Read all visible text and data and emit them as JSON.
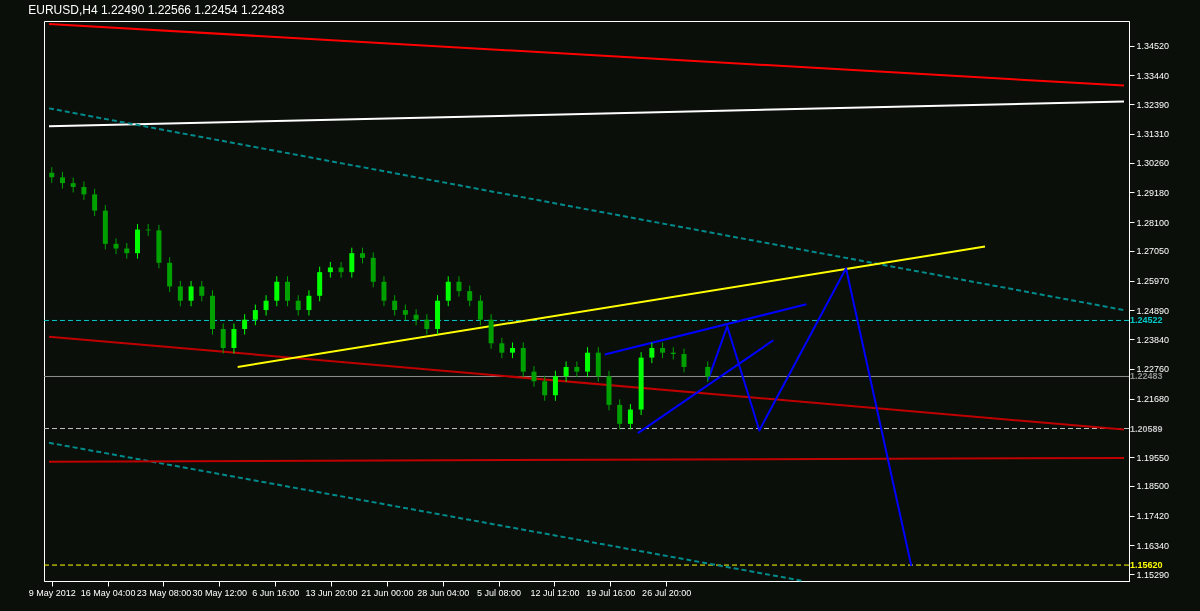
{
  "chart_data": {
    "type": "candlestick",
    "title": "EURUSD,H4 1.22490 1.22566 1.22454 1.22483",
    "x": [
      "2012-05-09T00:00",
      "2012-05-10T09:00",
      "2012-05-11T18:00",
      "2012-05-13T03:00",
      "2012-05-14T12:00",
      "2012-05-15T21:00",
      "2012-05-17T06:00",
      "2012-05-18T15:00",
      "2012-05-20T00:00",
      "2012-05-21T09:00",
      "2012-05-22T18:00",
      "2012-05-24T03:00",
      "2012-05-25T12:00",
      "2012-05-26T21:00",
      "2012-05-28T06:00",
      "2012-05-29T15:00",
      "2012-05-31T00:00",
      "2012-06-01T09:00",
      "2012-06-02T18:00",
      "2012-06-04T03:00",
      "2012-06-05T12:00",
      "2012-06-06T21:00",
      "2012-06-08T06:00",
      "2012-06-09T15:00",
      "2012-06-11T00:00",
      "2012-06-12T09:00",
      "2012-06-13T18:00",
      "2012-06-15T03:00",
      "2012-06-16T12:00",
      "2012-06-17T21:00",
      "2012-06-19T06:00",
      "2012-06-20T15:00",
      "2012-06-22T00:00",
      "2012-06-23T09:00",
      "2012-06-24T18:00",
      "2012-06-26T03:00",
      "2012-06-27T12:00",
      "2012-06-28T21:00",
      "2012-06-30T06:00",
      "2012-07-01T15:00",
      "2012-07-03T00:00",
      "2012-07-04T09:00",
      "2012-07-05T18:00",
      "2012-07-07T03:00",
      "2012-07-08T12:00",
      "2012-07-09T21:00",
      "2012-07-11T06:00",
      "2012-07-12T15:00",
      "2012-07-14T00:00",
      "2012-07-15T09:00",
      "2012-07-16T18:00",
      "2012-07-18T03:00",
      "2012-07-19T12:00",
      "2012-07-20T21:00",
      "2012-07-22T06:00",
      "2012-07-23T15:00",
      "2012-07-25T00:00",
      "2012-07-26T09:00",
      "2012-07-27T18:00",
      "2012-07-29T03:00",
      "2012-08-01T04:00"
    ],
    "ohlc": [
      [
        1.299,
        1.301,
        1.2953,
        1.2973
      ],
      [
        1.2973,
        1.2993,
        1.2932,
        1.2952
      ],
      [
        1.2952,
        1.2972,
        1.2918,
        1.2938
      ],
      [
        1.2938,
        1.2958,
        1.2891,
        1.2911
      ],
      [
        1.2911,
        1.2931,
        1.2832,
        1.2852
      ],
      [
        1.2852,
        1.2872,
        1.2711,
        1.2731
      ],
      [
        1.2731,
        1.2751,
        1.2694,
        1.2714
      ],
      [
        1.2714,
        1.2734,
        1.2677,
        1.2697
      ],
      [
        1.2697,
        1.2803,
        1.2677,
        1.2783
      ],
      [
        1.2783,
        1.2803,
        1.276,
        1.278
      ],
      [
        1.278,
        1.28,
        1.2642,
        1.2662
      ],
      [
        1.2662,
        1.2682,
        1.2556,
        1.2576
      ],
      [
        1.2576,
        1.2596,
        1.2504,
        1.2524
      ],
      [
        1.2524,
        1.2596,
        1.2504,
        1.2576
      ],
      [
        1.2576,
        1.2596,
        1.2522,
        1.2542
      ],
      [
        1.2542,
        1.2562,
        1.2401,
        1.2421
      ],
      [
        1.2421,
        1.2441,
        1.2332,
        1.2352
      ],
      [
        1.2352,
        1.2441,
        1.2332,
        1.2421
      ],
      [
        1.2421,
        1.2475,
        1.2401,
        1.2455
      ],
      [
        1.2455,
        1.251,
        1.2435,
        1.249
      ],
      [
        1.249,
        1.2544,
        1.247,
        1.2524
      ],
      [
        1.2524,
        1.2613,
        1.2504,
        1.2593
      ],
      [
        1.2593,
        1.2613,
        1.2504,
        1.2524
      ],
      [
        1.2524,
        1.2544,
        1.247,
        1.249
      ],
      [
        1.249,
        1.2562,
        1.247,
        1.2542
      ],
      [
        1.2542,
        1.2648,
        1.2522,
        1.2628
      ],
      [
        1.2628,
        1.2665,
        1.2608,
        1.2645
      ],
      [
        1.2645,
        1.2665,
        1.2608,
        1.2628
      ],
      [
        1.2628,
        1.2717,
        1.2608,
        1.2697
      ],
      [
        1.2697,
        1.2717,
        1.266,
        1.268
      ],
      [
        1.268,
        1.27,
        1.2573,
        1.2593
      ],
      [
        1.2593,
        1.2613,
        1.2504,
        1.2524
      ],
      [
        1.2524,
        1.2544,
        1.247,
        1.249
      ],
      [
        1.249,
        1.251,
        1.2453,
        1.2473
      ],
      [
        1.2473,
        1.2493,
        1.2435,
        1.2455
      ],
      [
        1.2455,
        1.2475,
        1.2401,
        1.2421
      ],
      [
        1.2421,
        1.2544,
        1.2401,
        1.2524
      ],
      [
        1.2524,
        1.2613,
        1.2504,
        1.2593
      ],
      [
        1.2593,
        1.2613,
        1.2539,
        1.2559
      ],
      [
        1.2559,
        1.2579,
        1.2504,
        1.2524
      ],
      [
        1.2524,
        1.2544,
        1.2435,
        1.2455
      ],
      [
        1.2455,
        1.2475,
        1.2349,
        1.2369
      ],
      [
        1.2369,
        1.2389,
        1.2315,
        1.2335
      ],
      [
        1.2335,
        1.2372,
        1.2315,
        1.2352
      ],
      [
        1.2352,
        1.2372,
        1.2246,
        1.2266
      ],
      [
        1.2266,
        1.2286,
        1.2211,
        1.2231
      ],
      [
        1.2231,
        1.2251,
        1.216,
        1.218
      ],
      [
        1.218,
        1.2269,
        1.216,
        1.2249
      ],
      [
        1.2249,
        1.2303,
        1.2229,
        1.2283
      ],
      [
        1.2283,
        1.2303,
        1.2246,
        1.2266
      ],
      [
        1.2266,
        1.2355,
        1.2246,
        1.2335
      ],
      [
        1.2335,
        1.2355,
        1.2229,
        1.2249
      ],
      [
        1.2249,
        1.2269,
        1.2125,
        1.2145
      ],
      [
        1.2145,
        1.2165,
        1.2056,
        1.2076
      ],
      [
        1.2076,
        1.2148,
        1.2056,
        1.2128
      ],
      [
        1.2128,
        1.2337,
        1.2108,
        1.2317
      ],
      [
        1.2317,
        1.2372,
        1.2297,
        1.2352
      ],
      [
        1.2352,
        1.2372,
        1.2315,
        1.2335
      ],
      [
        1.2335,
        1.2355,
        1.231,
        1.233
      ],
      [
        1.233,
        1.235,
        1.2263,
        1.2283
      ],
      [
        1.2283,
        1.2303,
        1.2228,
        1.2248
      ]
    ],
    "colors": [
      "#00a000",
      "#00a000",
      "#00a000",
      "#00a000",
      "#00a000",
      "#00a000",
      "#00a000",
      "#00a000",
      "#00ff00",
      "#00a000",
      "#00a000",
      "#00a000",
      "#00a000",
      "#00ff00",
      "#00a000",
      "#00a000",
      "#00a000",
      "#00ff00",
      "#00ff00",
      "#00ff00",
      "#00ff00",
      "#00ff00",
      "#00a000",
      "#00a000",
      "#00ff00",
      "#00ff00",
      "#00ff00",
      "#00a000",
      "#00ff00",
      "#00a000",
      "#00a000",
      "#00a000",
      "#00a000",
      "#00a000",
      "#00a000",
      "#00a000",
      "#00ff00",
      "#00ff00",
      "#00a000",
      "#00a000",
      "#00a000",
      "#00a000",
      "#00a000",
      "#00ff00",
      "#00a000",
      "#00a000",
      "#00a000",
      "#00ff00",
      "#00ff00",
      "#00a000",
      "#00ff00",
      "#00a000",
      "#00a000",
      "#00a000",
      "#00ff00",
      "#00ff00",
      "#00ff00",
      "#00a000",
      "#00a000",
      "#00a000",
      "#00a000"
    ],
    "series": [
      {
        "type": "line",
        "color": "#ff0000",
        "x": [
          "2012-05-08T15:30",
          "2012-09-23T14:00"
        ],
        "values": [
          1.3531,
          1.3307
        ]
      },
      {
        "type": "line",
        "color": "#ffffff",
        "x": [
          "2012-05-08T15:30",
          "2012-09-23T14:00"
        ],
        "values": [
          1.3159,
          1.3249
        ]
      },
      {
        "type": "line",
        "color": "#008b8b",
        "line_style": "dashed",
        "x": [
          "2012-05-08T15:30",
          "2012-09-23T14:00"
        ],
        "values": [
          1.3224,
          1.249
        ]
      },
      {
        "type": "line",
        "color": "#008b8b",
        "line_style": "dashed",
        "x": [
          "2012-05-08T15:30",
          "2012-08-13T11:00"
        ],
        "values": [
          1.2007,
          1.1504
        ]
      },
      {
        "type": "line",
        "color": "#c00000",
        "x": [
          "2012-05-08T15:30",
          "2012-09-23T14:00"
        ],
        "values": [
          1.2393,
          1.2055
        ]
      },
      {
        "type": "line",
        "color": "#c00000",
        "x": [
          "2012-05-08T15:30",
          "2012-09-23T14:00"
        ],
        "values": [
          1.1938,
          1.1952
        ]
      },
      {
        "type": "line",
        "color": "#ffff00",
        "x": [
          "2012-06-01T20:30",
          "2012-09-05T18:00"
        ],
        "values": [
          1.2283,
          1.2721
        ]
      },
      {
        "type": "line",
        "color": "#0000ff",
        "x": [
          "2012-07-18T23:00",
          "2012-08-13T20:00"
        ],
        "values": [
          1.2328,
          1.2511
        ]
      },
      {
        "type": "line",
        "color": "#0000ff",
        "x": [
          "2012-07-23T05:00",
          "2012-08-09T14:00"
        ],
        "values": [
          1.2042,
          1.238
        ]
      },
      {
        "type": "line",
        "color": "#0000ff",
        "x": [
          "2012-08-01T05:00",
          "2012-08-03T16:00",
          "2012-08-07T19:00",
          "2012-08-18T22:00",
          "2012-08-27T07:00"
        ],
        "values": [
          1.2235,
          1.2431,
          1.2052,
          1.2642,
          1.1559
        ]
      }
    ],
    "ref_lines": [
      {
        "axis": "y",
        "value": 1.24522,
        "label": "1.24522",
        "color": "#00c8c8",
        "line_style": "dashed"
      },
      {
        "axis": "y",
        "value": 1.22483,
        "label": "1.22483",
        "color": "#909090",
        "line_style": "solid"
      },
      {
        "axis": "y",
        "value": 1.20589,
        "label": "1.20589",
        "color": "#c0c0c0",
        "line_style": "dashed"
      },
      {
        "axis": "y",
        "value": 1.1562,
        "label": "1.15620",
        "color": "#ffff00",
        "line_style": "dashed"
      }
    ],
    "xlim": [
      "2012-05-08T15:30",
      "2012-09-23T14:00"
    ],
    "ylim": [
      1.1504,
      1.3542
    ],
    "xticks": [
      {
        "value": "2012-05-09T00:00",
        "label": "9 May 2012"
      },
      {
        "value": "2012-05-16T04:00",
        "label": "16 May 04:00"
      },
      {
        "value": "2012-05-23T08:00",
        "label": "23 May 08:00"
      },
      {
        "value": "2012-05-30T12:00",
        "label": "30 May 12:00"
      },
      {
        "value": "2012-06-06T16:00",
        "label": "6 Jun 16:00"
      },
      {
        "value": "2012-06-13T20:00",
        "label": "13 Jun 20:00"
      },
      {
        "value": "2012-06-21T00:00",
        "label": "21 Jun 00:00"
      },
      {
        "value": "2012-06-28T04:00",
        "label": "28 Jun 04:00"
      },
      {
        "value": "2012-07-05T08:00",
        "label": "5 Jul 08:00"
      },
      {
        "value": "2012-07-12T12:00",
        "label": "12 Jul 12:00"
      },
      {
        "value": "2012-07-19T16:00",
        "label": "19 Jul 16:00"
      },
      {
        "value": "2012-07-26T20:00",
        "label": "26 Jul 20:00"
      }
    ],
    "yticks": [
      {
        "value": 1.3452,
        "label": "1.34520"
      },
      {
        "value": 1.3344,
        "label": "1.33440"
      },
      {
        "value": 1.3239,
        "label": "1.32390"
      },
      {
        "value": 1.3131,
        "label": "1.31310"
      },
      {
        "value": 1.3026,
        "label": "1.30260"
      },
      {
        "value": 1.2918,
        "label": "1.29180"
      },
      {
        "value": 1.281,
        "label": "1.28100"
      },
      {
        "value": 1.2705,
        "label": "1.27050"
      },
      {
        "value": 1.2597,
        "label": "1.25970"
      },
      {
        "value": 1.2489,
        "label": "1.24890"
      },
      {
        "value": 1.2384,
        "label": "1.23840"
      },
      {
        "value": 1.2276,
        "label": "1.22760"
      },
      {
        "value": 1.2168,
        "label": "1.21680"
      },
      {
        "value": 1.1955,
        "label": "1.19550"
      },
      {
        "value": 1.185,
        "label": "1.18500"
      },
      {
        "value": 1.1742,
        "label": "1.17420"
      },
      {
        "value": 1.1634,
        "label": "1.16340"
      },
      {
        "value": 1.1529,
        "label": "1.15290"
      }
    ],
    "grid": false,
    "marker": "none"
  }
}
